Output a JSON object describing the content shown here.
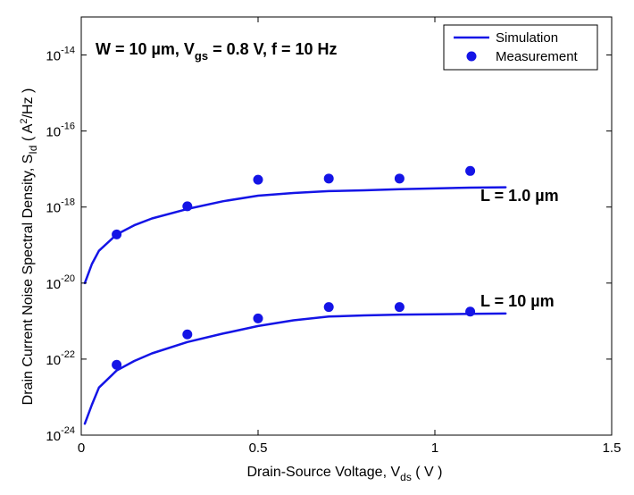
{
  "chart_data": {
    "type": "line",
    "title": "",
    "xlabel": "Drain-Source Voltage, V",
    "xlabel_sub": "ds",
    "xlabel_unit": " ( V )",
    "ylabel": "Drain Current Noise Spectral Density, S",
    "ylabel_sub": "Id",
    "ylabel_unit_pre": " ( A",
    "ylabel_unit_sup": "2",
    "ylabel_unit_post": "/Hz )",
    "xlim": [
      0,
      1.5
    ],
    "ylim_exponent": [
      -24,
      -13
    ],
    "y_scale": "log",
    "grid": false,
    "legend_position": "top-right",
    "x_ticks": [
      {
        "value": 0,
        "label": "0"
      },
      {
        "value": 0.5,
        "label": "0.5"
      },
      {
        "value": 1,
        "label": "1"
      },
      {
        "value": 1.5,
        "label": "1.5"
      }
    ],
    "y_ticks": [
      {
        "exp": -24,
        "base": "10",
        "sup": "-24"
      },
      {
        "exp": -22,
        "base": "10",
        "sup": "-22"
      },
      {
        "exp": -20,
        "base": "10",
        "sup": "-20"
      },
      {
        "exp": -18,
        "base": "10",
        "sup": "-18"
      },
      {
        "exp": -16,
        "base": "10",
        "sup": "-16"
      },
      {
        "exp": -14,
        "base": "10",
        "sup": "-14"
      }
    ],
    "annotations": {
      "conditions": {
        "p1": "W = 10 µm, V",
        "s1": "gs",
        "p2": " = 0.8 V, f = 10 Hz"
      },
      "label_L1": "L = 1.0 µm",
      "label_L10": "L = 10 µm"
    },
    "legend": {
      "simulation": "Simulation",
      "measurement": "Measurement"
    },
    "series": [
      {
        "name": "Simulation",
        "kind": "line",
        "curve": "L = 1.0 µm",
        "x": [
          0.01,
          0.03,
          0.05,
          0.1,
          0.15,
          0.2,
          0.3,
          0.4,
          0.5,
          0.6,
          0.7,
          0.8,
          0.9,
          1.0,
          1.1,
          1.2
        ],
        "log_y": [
          -20.0,
          -19.5,
          -19.15,
          -18.72,
          -18.48,
          -18.3,
          -18.05,
          -17.85,
          -17.7,
          -17.63,
          -17.58,
          -17.56,
          -17.53,
          -17.51,
          -17.49,
          -17.48
        ]
      },
      {
        "name": "Simulation",
        "kind": "line",
        "curve": "L = 10 µm",
        "x": [
          0.01,
          0.03,
          0.05,
          0.1,
          0.15,
          0.2,
          0.3,
          0.4,
          0.5,
          0.6,
          0.7,
          0.8,
          0.9,
          1.0,
          1.1,
          1.2
        ],
        "log_y": [
          -23.7,
          -23.2,
          -22.75,
          -22.3,
          -22.05,
          -21.85,
          -21.55,
          -21.33,
          -21.13,
          -20.98,
          -20.88,
          -20.85,
          -20.83,
          -20.82,
          -20.81,
          -20.8
        ]
      },
      {
        "name": "Measurement",
        "kind": "points",
        "curve": "L = 1.0 µm",
        "x": [
          0.1,
          0.3,
          0.5,
          0.7,
          0.9,
          1.1
        ],
        "log_y": [
          -18.72,
          -17.98,
          -17.28,
          -17.25,
          -17.25,
          -17.05
        ]
      },
      {
        "name": "Measurement",
        "kind": "points",
        "curve": "L = 10 µm",
        "x": [
          0.1,
          0.3,
          0.5,
          0.7,
          0.9,
          1.1
        ],
        "log_y": [
          -22.15,
          -21.35,
          -20.93,
          -20.63,
          -20.63,
          -20.75
        ]
      }
    ],
    "colors": {
      "series": "#1414e6",
      "axes": "#000000",
      "background": "#ffffff"
    }
  }
}
